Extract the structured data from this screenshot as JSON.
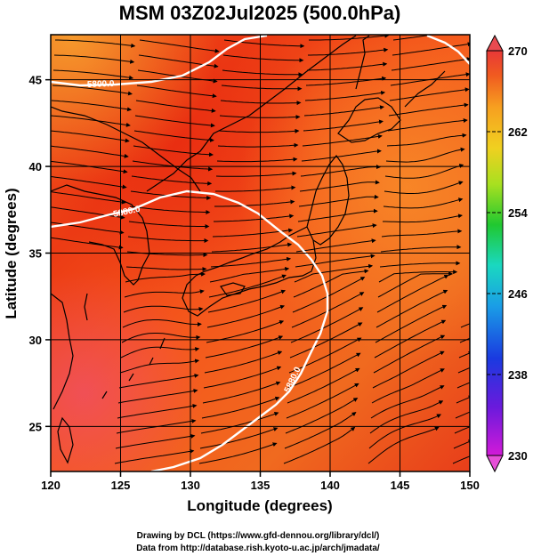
{
  "title": "MSM 03Z02Jul2025 (500.0hPa)",
  "x_axis": {
    "label": "Longitude (degrees)",
    "ticks": [
      120,
      125,
      130,
      135,
      140,
      145,
      150
    ],
    "range": [
      120,
      150
    ]
  },
  "y_axis": {
    "label": "Latitude (degrees)",
    "ticks": [
      25,
      30,
      35,
      40,
      45
    ],
    "range": [
      22.4,
      47.6
    ]
  },
  "colorbar": {
    "ticks": [
      230,
      238,
      246,
      254,
      262,
      270
    ],
    "range": [
      230,
      270
    ]
  },
  "contours": [
    {
      "label": "5800.0"
    },
    {
      "label": "5880.0"
    },
    {
      "label": "5880.0"
    }
  ],
  "credits": {
    "line1": "Drawing by DCL (https://www.gfd-dennou.org/library/dcl/)",
    "line2": "Data from http://database.rish.kyoto-u.ac.jp/arch/jmadata/"
  }
}
